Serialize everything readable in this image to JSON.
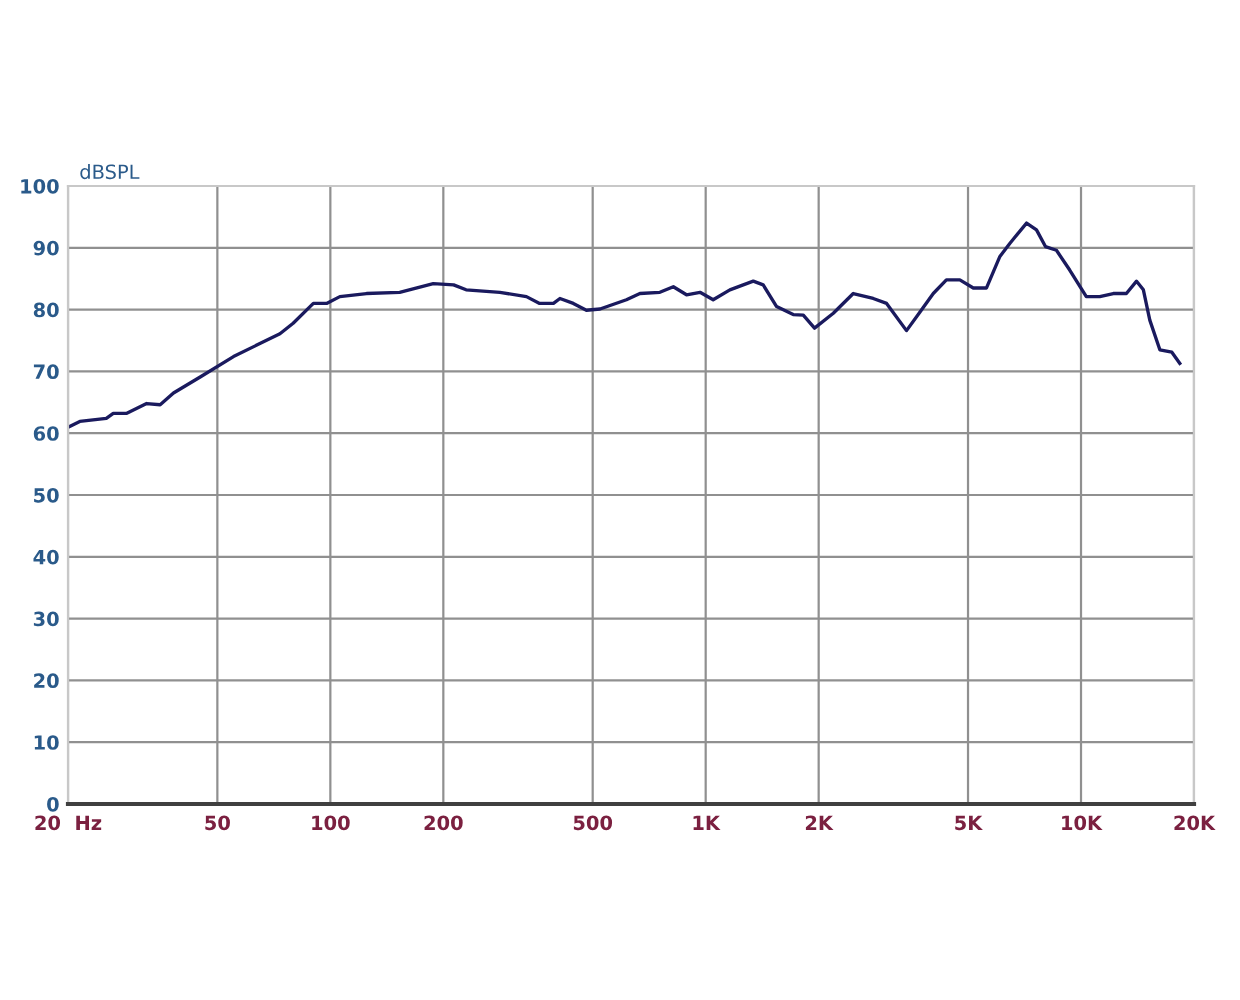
{
  "chart_data": {
    "type": "line",
    "ylabel": "dBSPL",
    "log": "x",
    "grid": true,
    "marker": "none",
    "line_style": "solid",
    "series": [
      {
        "color": "#1a1a5e",
        "x": [
          20.2,
          21.5,
          25.3,
          26.4,
          28.6,
          32.4,
          35.2,
          38.2,
          45,
          55.2,
          64.9,
          73.4,
          79.6,
          90.1,
          97.7,
          106,
          124.8,
          153,
          188,
          213,
          230,
          283,
          333,
          361,
          393,
          409,
          444,
          481,
          523,
          615,
          668,
          755,
          820,
          889,
          966,
          1047,
          1160,
          1339,
          1423,
          1545,
          1711,
          1820,
          1950,
          2188,
          2473,
          2795,
          3034,
          3428,
          3724,
          4040,
          4379,
          4755,
          5164,
          5600,
          6080,
          6460,
          7160,
          7610,
          8040,
          8600,
          9330,
          10330,
          11220,
          12190,
          13210,
          14060,
          14660,
          15250,
          16220,
          17460,
          18330
        ],
        "values": [
          61.1,
          61.9,
          62.4,
          63.2,
          63.2,
          64.8,
          64.6,
          66.5,
          69.1,
          72.4,
          74.5,
          76.1,
          77.8,
          81.0,
          81.0,
          82.1,
          82.6,
          82.8,
          84.2,
          84.0,
          83.2,
          82.8,
          82.1,
          81.0,
          81.0,
          81.8,
          81.0,
          79.9,
          80.1,
          81.6,
          82.6,
          82.8,
          83.7,
          82.4,
          82.8,
          81.6,
          83.2,
          84.6,
          84.0,
          80.5,
          79.2,
          79.1,
          77.0,
          79.4,
          82.6,
          81.8,
          81.0,
          76.6,
          79.6,
          82.6,
          84.8,
          84.8,
          83.5,
          83.5,
          88.6,
          90.7,
          94.0,
          92.9,
          90.2,
          89.6,
          86.4,
          82.1,
          82.1,
          82.6,
          82.6,
          84.6,
          83.2,
          78.3,
          73.5,
          73.1,
          71.3
        ]
      }
    ],
    "xlim": [
      20,
      20000
    ],
    "ylim": [
      0,
      100
    ],
    "xticks": [
      {
        "value": 20,
        "label": "20  Hz"
      },
      50,
      100,
      200,
      500,
      {
        "value": 1000,
        "label": "1K"
      },
      {
        "value": 2000,
        "label": "2K"
      },
      {
        "value": 5000,
        "label": "5K"
      },
      {
        "value": 10000,
        "label": "10K"
      },
      {
        "value": 20000,
        "label": "20K"
      }
    ],
    "yticks": [
      0,
      10,
      20,
      30,
      40,
      50,
      60,
      70,
      80,
      90,
      100
    ]
  }
}
